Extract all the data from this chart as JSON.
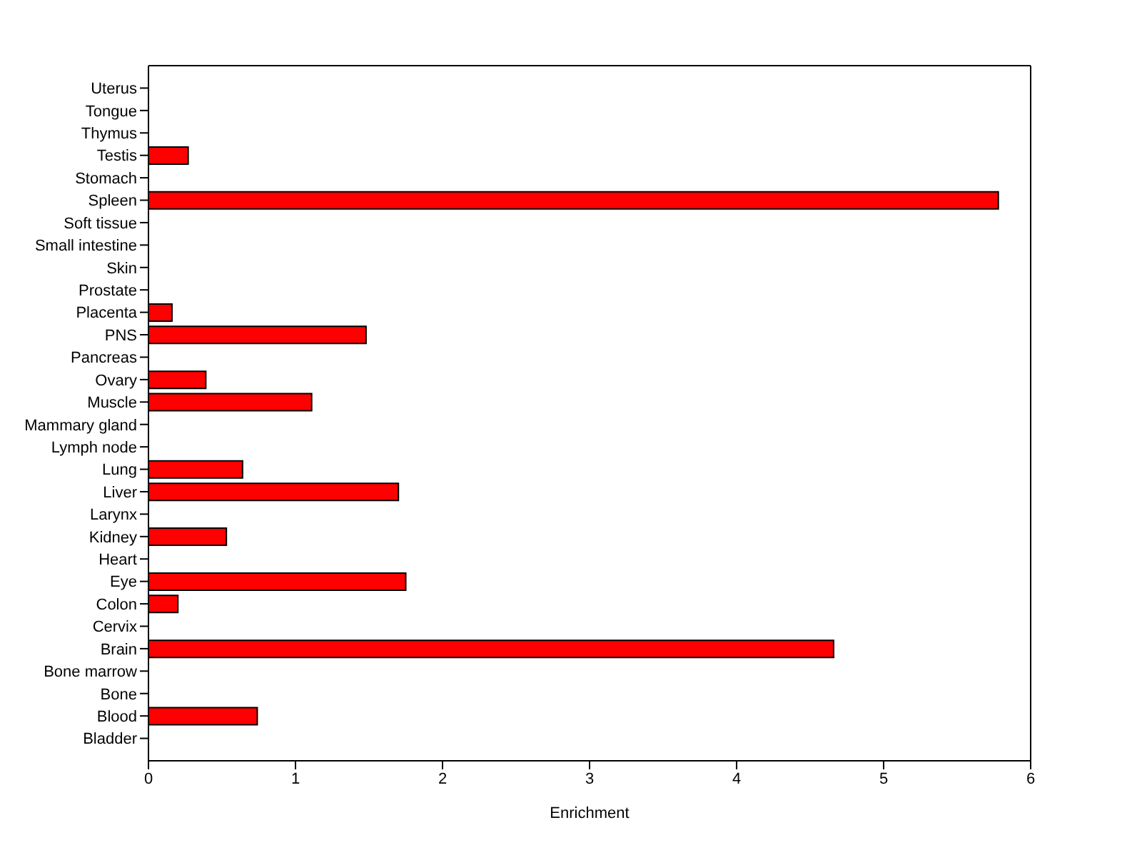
{
  "chart_data": {
    "type": "bar",
    "orientation": "horizontal",
    "xlabel": "Enrichment",
    "categories": [
      "Uterus",
      "Tongue",
      "Thymus",
      "Testis",
      "Stomach",
      "Spleen",
      "Soft tissue",
      "Small intestine",
      "Skin",
      "Prostate",
      "Placenta",
      "PNS",
      "Pancreas",
      "Ovary",
      "Muscle",
      "Mammary gland",
      "Lymph node",
      "Lung",
      "Liver",
      "Larynx",
      "Kidney",
      "Heart",
      "Eye",
      "Colon",
      "Cervix",
      "Brain",
      "Bone marrow",
      "Bone",
      "Blood",
      "Bladder"
    ],
    "values": [
      0,
      0,
      0,
      0.27,
      0,
      5.78,
      0,
      0,
      0,
      0,
      0.16,
      1.48,
      0,
      0.39,
      1.11,
      0,
      0,
      0.64,
      1.7,
      0,
      0.53,
      0,
      1.75,
      0.2,
      0,
      4.66,
      0,
      0,
      0.74,
      0
    ],
    "color": "#ff0000",
    "xlim": [
      0,
      6
    ],
    "xticks": [
      0,
      1,
      2,
      3,
      4,
      5,
      6
    ],
    "grid": false,
    "legend": false
  }
}
